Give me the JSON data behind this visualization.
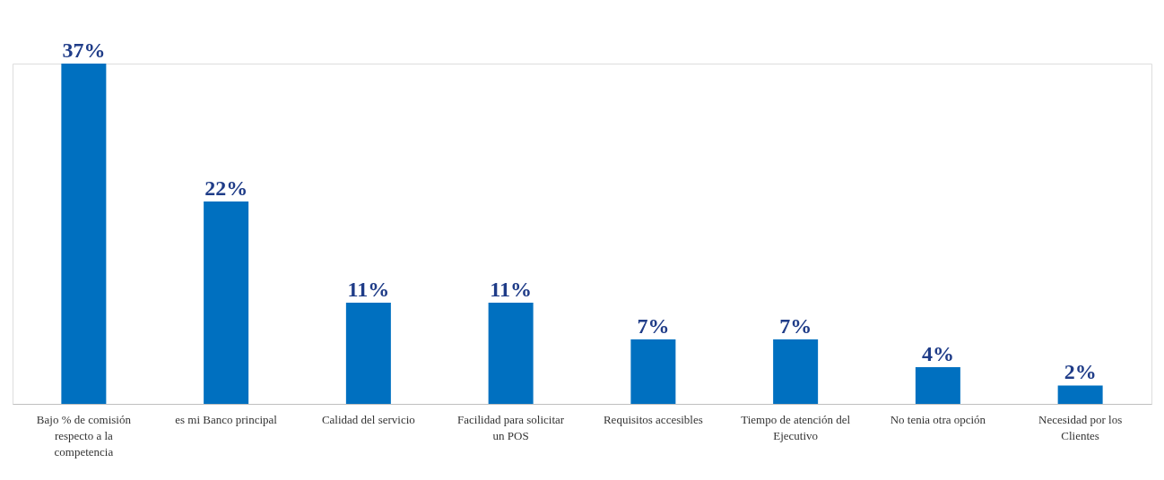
{
  "chart_data": {
    "type": "bar",
    "categories": [
      "Bajo % de comisión respecto a la competencia",
      "es mi Banco principal",
      "Calidad del servicio",
      "Facilidad para solicitar un POS",
      "Requisitos accesibles",
      "Tiempo de atención del Ejecutivo",
      "No tenia otra opción",
      "Necesidad por los Clientes"
    ],
    "values": [
      37,
      22,
      11,
      11,
      7,
      7,
      4,
      2
    ],
    "value_labels": [
      "37%",
      "22%",
      "11%",
      "11%",
      "7%",
      "7%",
      "4%",
      "2%"
    ],
    "color": "#0070c0"
  }
}
